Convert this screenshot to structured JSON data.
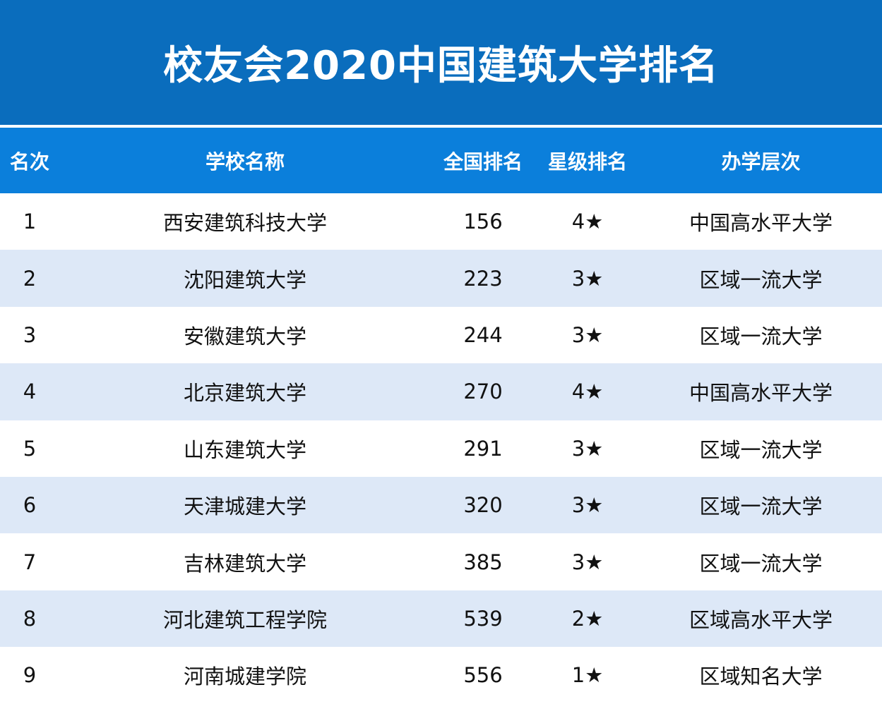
{
  "title": "校友会2020中国建筑大学排名",
  "columns": {
    "rank": "名次",
    "name": "学校名称",
    "national": "全国排名",
    "star": "星级排名",
    "level": "办学层次"
  },
  "rows": [
    {
      "rank": "1",
      "name": "西安建筑科技大学",
      "national": "156",
      "star": "4★",
      "level": "中国高水平大学"
    },
    {
      "rank": "2",
      "name": "沈阳建筑大学",
      "national": "223",
      "star": "3★",
      "level": "区域一流大学"
    },
    {
      "rank": "3",
      "name": "安徽建筑大学",
      "national": "244",
      "star": "3★",
      "level": "区域一流大学"
    },
    {
      "rank": "4",
      "name": "北京建筑大学",
      "national": "270",
      "star": "4★",
      "level": "中国高水平大学"
    },
    {
      "rank": "5",
      "name": "山东建筑大学",
      "national": "291",
      "star": "3★",
      "level": "区域一流大学"
    },
    {
      "rank": "6",
      "name": "天津城建大学",
      "national": "320",
      "star": "3★",
      "level": "区域一流大学"
    },
    {
      "rank": "7",
      "name": "吉林建筑大学",
      "national": "385",
      "star": "3★",
      "level": "区域一流大学"
    },
    {
      "rank": "8",
      "name": "河北建筑工程学院",
      "national": "539",
      "star": "2★",
      "level": "区域高水平大学"
    },
    {
      "rank": "9",
      "name": "河南城建学院",
      "national": "556",
      "star": "1★",
      "level": "区域知名大学"
    }
  ],
  "colors": {
    "title_bg": "#0a6dbd",
    "header_bg": "#0b7fdb",
    "row_alt_bg": "#dde8f7"
  }
}
